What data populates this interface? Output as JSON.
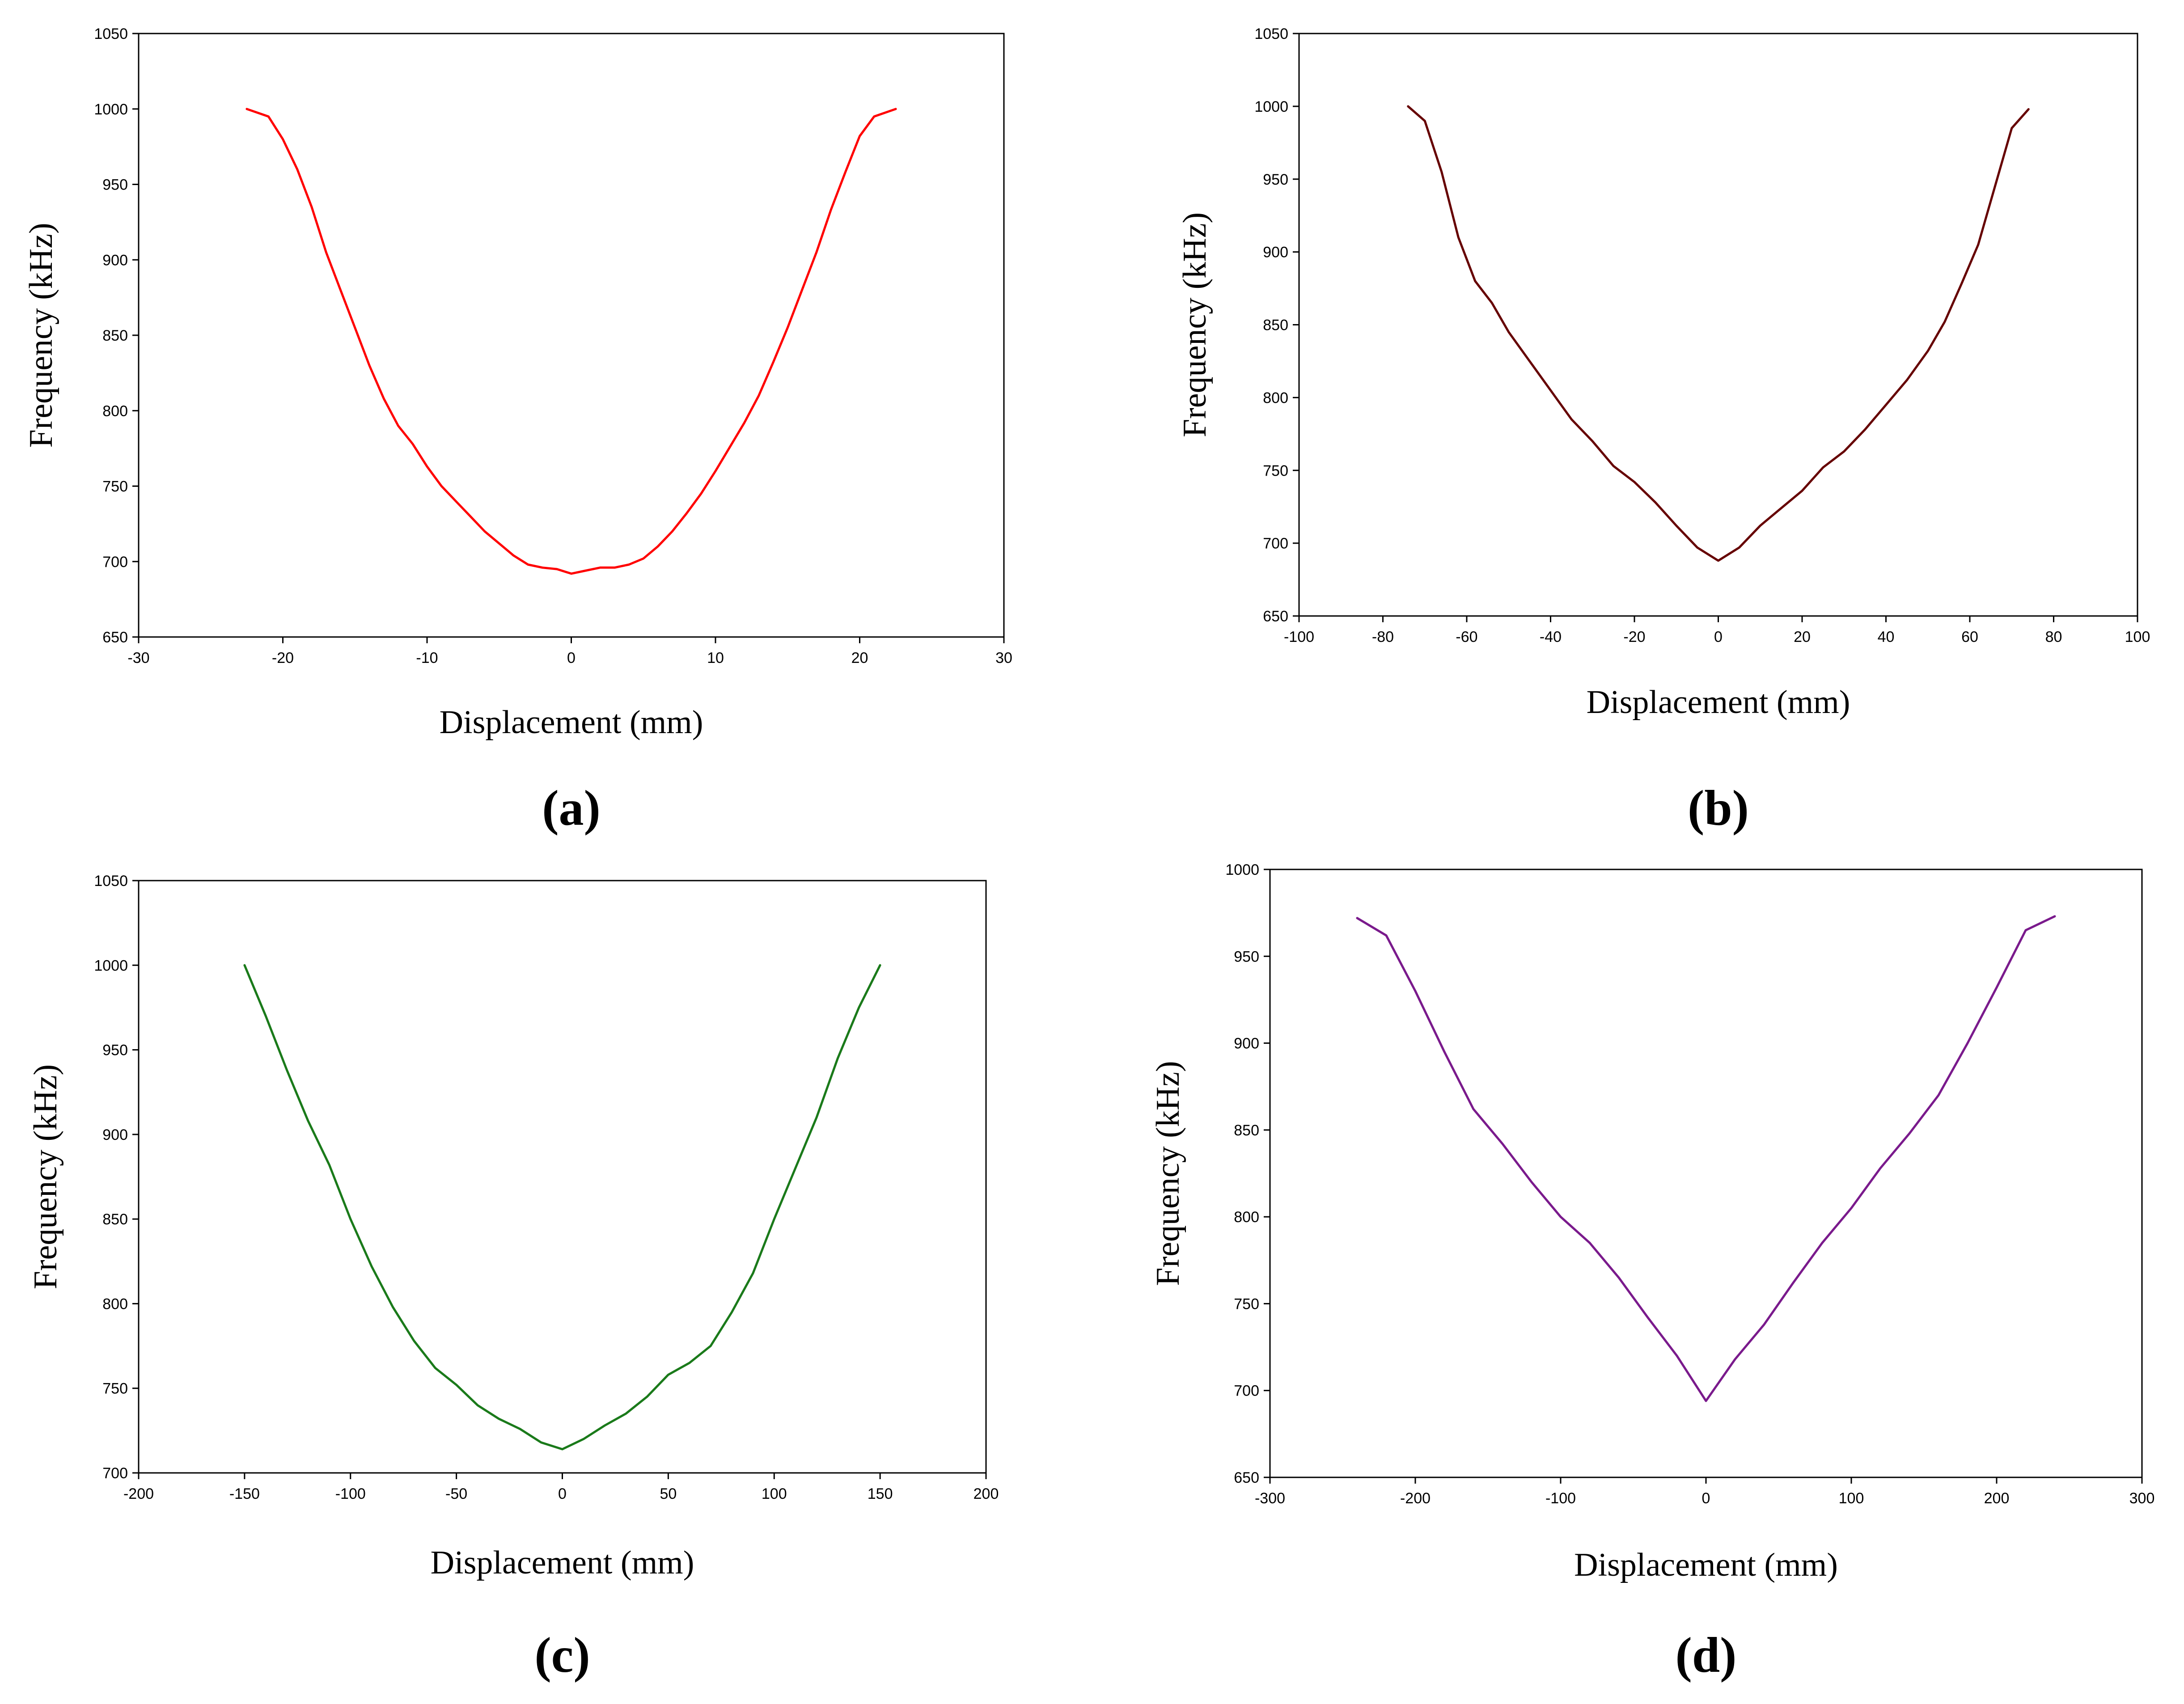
{
  "chart_data": [
    {
      "type": "line",
      "panel_label": "(a)",
      "xlabel": "Displacement (mm)",
      "ylabel": "Frequency (kHz)",
      "xlim": [
        -30,
        30
      ],
      "ylim": [
        650,
        1050
      ],
      "xticks": [
        -30,
        -20,
        -10,
        0,
        10,
        20,
        30
      ],
      "yticks": [
        650,
        700,
        750,
        800,
        850,
        900,
        950,
        1000,
        1050
      ],
      "grid": false,
      "series": [
        {
          "color": "#ff0000",
          "x": [
            -22.5,
            -21,
            -20,
            -19,
            -18,
            -17,
            -16,
            -15,
            -14,
            -13,
            -12,
            -11,
            -10,
            -9,
            -8,
            -7,
            -6,
            -5,
            -4,
            -3,
            -2,
            -1,
            0,
            1,
            2,
            3,
            4,
            5,
            6,
            7,
            8,
            9,
            10,
            11,
            12,
            13,
            14,
            15,
            16,
            17,
            18,
            19,
            20,
            21,
            22.5
          ],
          "y": [
            1000,
            995,
            980,
            960,
            935,
            905,
            880,
            855,
            830,
            808,
            790,
            778,
            763,
            750,
            740,
            730,
            720,
            712,
            704,
            698,
            696,
            695,
            692,
            694,
            696,
            696,
            698,
            702,
            710,
            720,
            732,
            745,
            760,
            776,
            792,
            810,
            832,
            855,
            880,
            905,
            933,
            958,
            982,
            995,
            1000
          ]
        }
      ]
    },
    {
      "type": "line",
      "panel_label": "(b)",
      "xlabel": "Displacement (mm)",
      "ylabel": "Frequency (kHz)",
      "xlim": [
        -100,
        100
      ],
      "ylim": [
        650,
        1050
      ],
      "xticks": [
        -100,
        -80,
        -60,
        -40,
        -20,
        0,
        20,
        40,
        60,
        80,
        100
      ],
      "yticks": [
        650,
        700,
        750,
        800,
        850,
        900,
        950,
        1000,
        1050
      ],
      "grid": false,
      "series": [
        {
          "color": "#660000",
          "x": [
            -74,
            -70,
            -66,
            -62,
            -58,
            -54,
            -50,
            -45,
            -40,
            -35,
            -30,
            -25,
            -20,
            -15,
            -10,
            -5,
            0,
            5,
            10,
            15,
            20,
            25,
            30,
            35,
            40,
            45,
            50,
            54,
            58,
            62,
            66,
            70,
            74
          ],
          "y": [
            1000,
            990,
            955,
            910,
            880,
            865,
            845,
            825,
            805,
            785,
            770,
            753,
            742,
            728,
            712,
            697,
            688,
            697,
            712,
            724,
            736,
            752,
            763,
            778,
            795,
            812,
            832,
            852,
            878,
            905,
            945,
            985,
            998
          ]
        }
      ]
    },
    {
      "type": "line",
      "panel_label": "(c)",
      "xlabel": "Displacement (mm)",
      "ylabel": "Frequency (kHz)",
      "xlim": [
        -200,
        200
      ],
      "ylim": [
        700,
        1050
      ],
      "xticks": [
        -200,
        -150,
        -100,
        -50,
        0,
        50,
        100,
        150,
        200
      ],
      "yticks": [
        700,
        750,
        800,
        850,
        900,
        950,
        1000,
        1050
      ],
      "grid": false,
      "series": [
        {
          "color": "#1a7a1a",
          "x": [
            -150,
            -140,
            -130,
            -120,
            -110,
            -100,
            -90,
            -80,
            -70,
            -60,
            -50,
            -40,
            -30,
            -20,
            -10,
            0,
            10,
            20,
            30,
            40,
            50,
            60,
            70,
            80,
            90,
            100,
            110,
            120,
            130,
            140,
            150
          ],
          "y": [
            1000,
            970,
            938,
            908,
            882,
            850,
            822,
            798,
            778,
            762,
            752,
            740,
            732,
            726,
            718,
            714,
            720,
            728,
            735,
            745,
            758,
            765,
            775,
            795,
            818,
            850,
            880,
            910,
            945,
            975,
            1000
          ]
        }
      ]
    },
    {
      "type": "line",
      "panel_label": "(d)",
      "xlabel": "Displacement (mm)",
      "ylabel": "Frequency (kHz)",
      "xlim": [
        -300,
        300
      ],
      "ylim": [
        650,
        1000
      ],
      "xticks": [
        -300,
        -200,
        -100,
        0,
        100,
        200,
        300
      ],
      "yticks": [
        650,
        700,
        750,
        800,
        850,
        900,
        950,
        1000
      ],
      "grid": false,
      "series": [
        {
          "color": "#7a1a8c",
          "x": [
            -240,
            -220,
            -200,
            -180,
            -160,
            -140,
            -120,
            -100,
            -80,
            -60,
            -40,
            -20,
            0,
            20,
            40,
            60,
            80,
            100,
            120,
            140,
            160,
            180,
            200,
            220,
            240
          ],
          "y": [
            972,
            962,
            930,
            895,
            862,
            842,
            820,
            800,
            785,
            765,
            742,
            720,
            694,
            718,
            738,
            762,
            785,
            805,
            828,
            848,
            870,
            900,
            932,
            965,
            973
          ]
        }
      ]
    }
  ]
}
